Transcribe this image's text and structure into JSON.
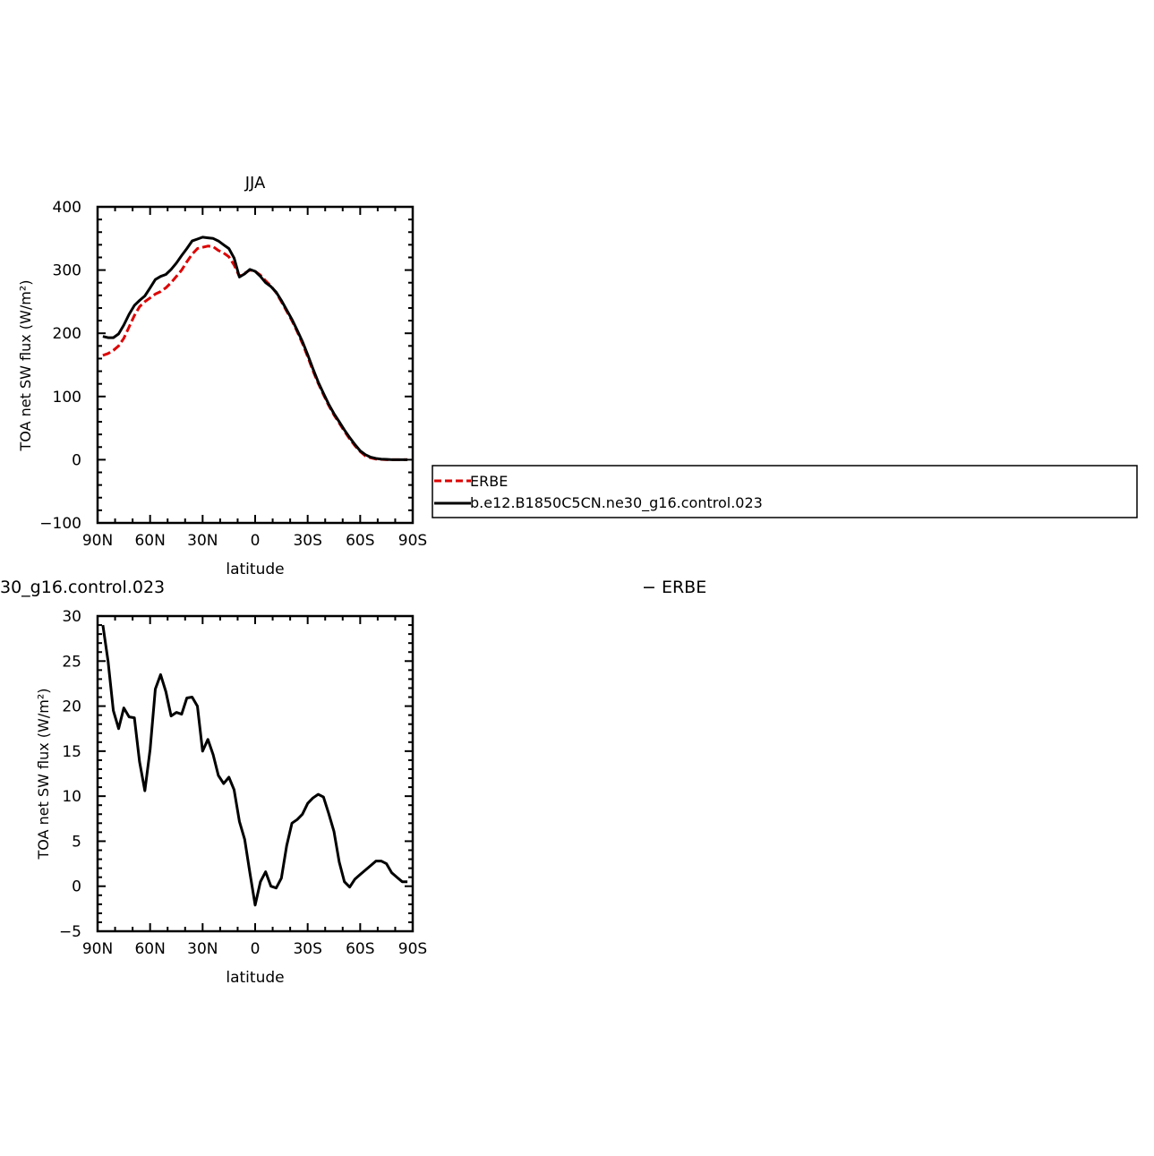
{
  "chart_data": [
    {
      "type": "line",
      "title": "JJA",
      "xlabel": "latitude",
      "ylabel": "TOA net SW flux (W/m²)",
      "xlim": [
        90,
        -90
      ],
      "ylim": [
        -100,
        400
      ],
      "x_ticks": [
        "90N",
        "60N",
        "30N",
        "0",
        "30S",
        "60S",
        "90S"
      ],
      "y_ticks": [
        "400",
        "300",
        "200",
        "100",
        "0",
        "−100"
      ],
      "grid": false,
      "legend": {
        "placement": "right",
        "entries": [
          "ERBE",
          "b.e12.B1850C5CN.ne30_g16.control.023"
        ]
      },
      "series": [
        {
          "name": "ERBE",
          "color": "#dd0000",
          "dash": "dashed",
          "x": [
            87,
            84,
            81,
            78,
            75,
            72,
            69,
            66,
            63,
            60,
            57,
            54,
            51,
            48,
            45,
            42,
            39,
            36,
            33,
            30,
            27,
            24,
            21,
            18,
            15,
            12,
            9,
            6,
            3,
            0,
            -3,
            -6,
            -9,
            -12,
            -15,
            -18,
            -21,
            -24,
            -27,
            -30,
            -33,
            -36,
            -39,
            -42,
            -45,
            -48,
            -51,
            -54,
            -57,
            -60,
            -63,
            -66,
            -69,
            -72,
            -75,
            -78,
            -81,
            -84,
            -87
          ],
          "values": [
            165,
            168,
            173,
            180,
            192,
            210,
            228,
            242,
            250,
            256,
            262,
            266,
            272,
            280,
            290,
            300,
            313,
            325,
            334,
            336,
            338,
            337,
            331,
            327,
            321,
            308,
            290,
            295,
            300,
            298,
            292,
            283,
            275,
            264,
            250,
            235,
            220,
            203,
            184,
            163,
            141,
            121,
            103,
            86,
            71,
            58,
            45,
            33,
            22,
            13,
            6,
            3,
            1,
            0.5,
            0,
            0,
            0,
            0,
            0
          ]
        },
        {
          "name": "b.e12.B1850C5CN.ne30_g16.control.023",
          "color": "#000000",
          "dash": "solid",
          "x": [
            87,
            84,
            81,
            78,
            75,
            72,
            69,
            66,
            63,
            60,
            57,
            54,
            51,
            48,
            45,
            42,
            39,
            36,
            33,
            30,
            27,
            24,
            21,
            18,
            15,
            12,
            9,
            6,
            3,
            0,
            -3,
            -6,
            -9,
            -12,
            -15,
            -18,
            -21,
            -24,
            -27,
            -30,
            -33,
            -36,
            -39,
            -42,
            -45,
            -48,
            -51,
            -54,
            -57,
            -60,
            -63,
            -66,
            -69,
            -72,
            -75,
            -78,
            -81,
            -84,
            -87
          ],
          "values": [
            195,
            193,
            193,
            199,
            213,
            230,
            244,
            252,
            259,
            272,
            285,
            290,
            293,
            301,
            311,
            323,
            334,
            346,
            349,
            352,
            351,
            350,
            346,
            340,
            334,
            319,
            289,
            294,
            301,
            298,
            290,
            280,
            274,
            265,
            252,
            237,
            222,
            205,
            187,
            166,
            144,
            123,
            105,
            88,
            73,
            60,
            47,
            35,
            24,
            14,
            8,
            4,
            2,
            1,
            0.5,
            0,
            0,
            0,
            0
          ]
        }
      ]
    },
    {
      "type": "line",
      "title_left": "30_g16.control.023",
      "title_right": "− ERBE",
      "xlabel": "latitude",
      "ylabel": "TOA net SW flux (W/m²)",
      "xlim": [
        90,
        -90
      ],
      "ylim": [
        -5,
        30
      ],
      "x_ticks": [
        "90N",
        "60N",
        "30N",
        "0",
        "30S",
        "60S",
        "90S"
      ],
      "y_ticks": [
        "30",
        "25",
        "20",
        "15",
        "10",
        "5",
        "0",
        "−5"
      ],
      "grid": false,
      "series": [
        {
          "color": "#000000",
          "dash": "solid",
          "x": [
            87,
            84,
            81,
            78,
            75,
            72,
            69,
            66,
            63,
            60,
            57,
            54,
            51,
            48,
            45,
            42,
            39,
            36,
            33,
            30,
            27,
            24,
            21,
            18,
            15,
            12,
            9,
            6,
            3,
            0,
            -3,
            -6,
            -9,
            -12,
            -15,
            -18,
            -21,
            -24,
            -27,
            -30,
            -33,
            -36,
            -39,
            -42,
            -45,
            -48,
            -51,
            -54,
            -57,
            -60,
            -63,
            -66,
            -69,
            -72,
            -75,
            -78,
            -81,
            -84,
            -87
          ],
          "values": [
            29,
            25,
            19.5,
            17.5,
            19.8,
            18.8,
            18.7,
            13.8,
            10.6,
            15.2,
            21.9,
            23.5,
            21.6,
            18.9,
            19.3,
            19.1,
            20.9,
            21,
            20,
            15,
            16.3,
            14.6,
            12.3,
            11.4,
            12.1,
            10.7,
            7.2,
            5.2,
            1.5,
            -2.1,
            0.5,
            1.6,
            0,
            -0.2,
            0.9,
            4.5,
            7,
            7.4,
            8,
            9.2,
            9.8,
            10.2,
            9.9,
            8.1,
            6.1,
            2.7,
            0.5,
            -0.1,
            0.8,
            1.3,
            1.8,
            2.3,
            2.8,
            2.8,
            2.5,
            1.5,
            1,
            0.5,
            0.5
          ]
        }
      ]
    }
  ]
}
